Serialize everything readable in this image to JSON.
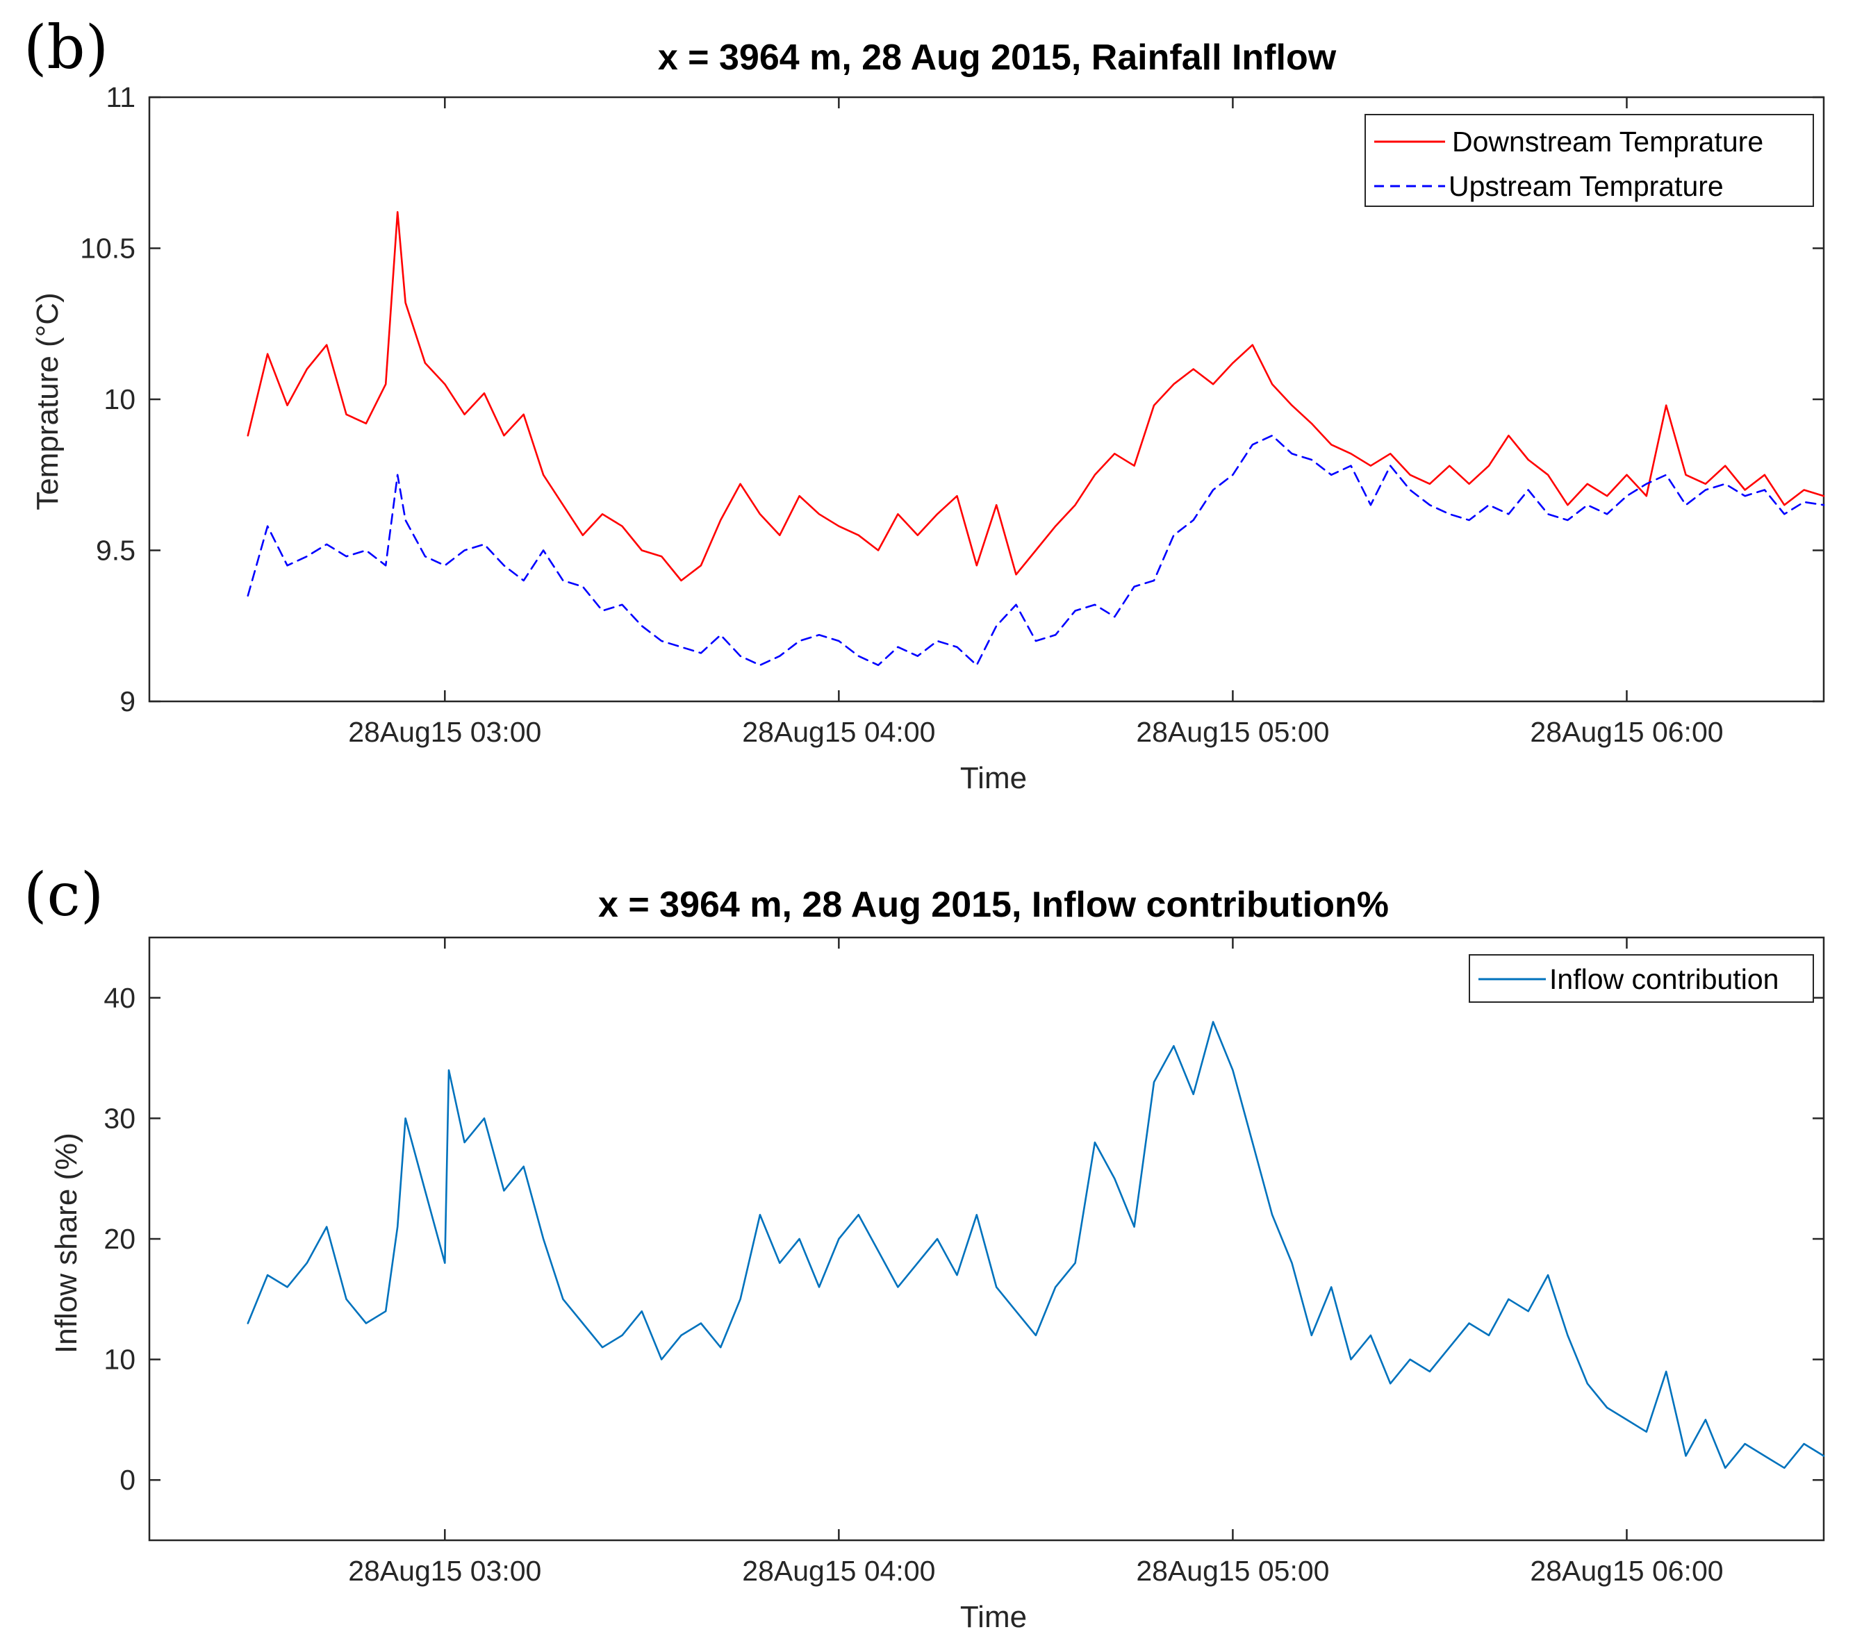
{
  "panel_b_label": "(b)",
  "panel_c_label": "(c)",
  "chart_data": [
    {
      "type": "line",
      "title": "x = 3964 m, 28 Aug 2015, Rainfall Inflow",
      "xlabel": "Time",
      "ylabel": "Temprature (°C)",
      "xlim_hours": [
        2.25,
        6.5
      ],
      "ylim": [
        9,
        11
      ],
      "yticks": [
        9,
        9.5,
        10,
        10.5,
        11
      ],
      "ytick_labels": [
        "9",
        "9.5",
        "10",
        "10.5",
        "11"
      ],
      "xticks_hours": [
        3,
        4,
        5,
        6
      ],
      "xtick_labels": [
        "28Aug15 03:00",
        "28Aug15 04:00",
        "28Aug15 05:00",
        "28Aug15 06:00"
      ],
      "legend_position": "top-right",
      "x_hours": [
        2.5,
        2.55,
        2.6,
        2.65,
        2.7,
        2.75,
        2.8,
        2.85,
        2.88,
        2.9,
        2.95,
        3.0,
        3.05,
        3.1,
        3.15,
        3.2,
        3.25,
        3.3,
        3.35,
        3.4,
        3.45,
        3.5,
        3.55,
        3.6,
        3.65,
        3.7,
        3.75,
        3.8,
        3.85,
        3.9,
        3.95,
        4.0,
        4.05,
        4.1,
        4.15,
        4.2,
        4.25,
        4.3,
        4.35,
        4.4,
        4.45,
        4.5,
        4.55,
        4.6,
        4.65,
        4.7,
        4.75,
        4.8,
        4.85,
        4.9,
        4.95,
        5.0,
        5.05,
        5.1,
        5.15,
        5.2,
        5.25,
        5.3,
        5.35,
        5.4,
        5.45,
        5.5,
        5.55,
        5.6,
        5.65,
        5.7,
        5.75,
        5.8,
        5.85,
        5.9,
        5.95,
        6.0,
        6.05,
        6.1,
        6.15,
        6.2,
        6.25,
        6.3,
        6.35,
        6.4,
        6.45,
        6.5
      ],
      "series": [
        {
          "name": "Downstream Temprature",
          "color": "#ff0000",
          "dash": "solid",
          "values": [
            9.88,
            10.15,
            9.98,
            10.1,
            10.18,
            9.95,
            9.92,
            10.05,
            10.62,
            10.32,
            10.12,
            10.05,
            9.95,
            10.02,
            9.88,
            9.95,
            9.75,
            9.65,
            9.55,
            9.62,
            9.58,
            9.5,
            9.48,
            9.4,
            9.45,
            9.6,
            9.72,
            9.62,
            9.55,
            9.68,
            9.62,
            9.58,
            9.55,
            9.5,
            9.62,
            9.55,
            9.62,
            9.68,
            9.45,
            9.65,
            9.42,
            9.5,
            9.58,
            9.65,
            9.75,
            9.82,
            9.78,
            9.98,
            10.05,
            10.1,
            10.05,
            10.12,
            10.18,
            10.05,
            9.98,
            9.92,
            9.85,
            9.82,
            9.78,
            9.82,
            9.75,
            9.72,
            9.78,
            9.72,
            9.78,
            9.88,
            9.8,
            9.75,
            9.65,
            9.72,
            9.68,
            9.75,
            9.68,
            9.98,
            9.75,
            9.72,
            9.78,
            9.7,
            9.75,
            9.65,
            9.7,
            9.68
          ]
        },
        {
          "name": "Upstream Temprature",
          "color": "#0000ff",
          "dash": "dashed",
          "values": [
            9.35,
            9.58,
            9.45,
            9.48,
            9.52,
            9.48,
            9.5,
            9.45,
            9.75,
            9.6,
            9.48,
            9.45,
            9.5,
            9.52,
            9.45,
            9.4,
            9.5,
            9.4,
            9.38,
            9.3,
            9.32,
            9.25,
            9.2,
            9.18,
            9.16,
            9.22,
            9.15,
            9.12,
            9.15,
            9.2,
            9.22,
            9.2,
            9.15,
            9.12,
            9.18,
            9.15,
            9.2,
            9.18,
            9.12,
            9.25,
            9.32,
            9.2,
            9.22,
            9.3,
            9.32,
            9.28,
            9.38,
            9.4,
            9.55,
            9.6,
            9.7,
            9.75,
            9.85,
            9.88,
            9.82,
            9.8,
            9.75,
            9.78,
            9.65,
            9.78,
            9.7,
            9.65,
            9.62,
            9.6,
            9.65,
            9.62,
            9.7,
            9.62,
            9.6,
            9.65,
            9.62,
            9.68,
            9.72,
            9.75,
            9.65,
            9.7,
            9.72,
            9.68,
            9.7,
            9.62,
            9.66,
            9.65
          ]
        }
      ]
    },
    {
      "type": "line",
      "title": "x = 3964 m, 28 Aug 2015, Inflow contribution%",
      "xlabel": "Time",
      "ylabel": "Inflow share (%)",
      "xlim_hours": [
        2.25,
        6.5
      ],
      "ylim": [
        -5,
        45
      ],
      "yticks": [
        0,
        10,
        20,
        30,
        40
      ],
      "ytick_labels": [
        "0",
        "10",
        "20",
        "30",
        "40"
      ],
      "xticks_hours": [
        3,
        4,
        5,
        6
      ],
      "xtick_labels": [
        "28Aug15 03:00",
        "28Aug15 04:00",
        "28Aug15 05:00",
        "28Aug15 06:00"
      ],
      "legend_position": "top-right",
      "x_hours": [
        2.5,
        2.55,
        2.6,
        2.65,
        2.7,
        2.75,
        2.8,
        2.85,
        2.88,
        2.9,
        2.95,
        3.0,
        3.01,
        3.05,
        3.1,
        3.15,
        3.2,
        3.25,
        3.3,
        3.35,
        3.4,
        3.45,
        3.5,
        3.55,
        3.6,
        3.65,
        3.7,
        3.75,
        3.8,
        3.85,
        3.9,
        3.95,
        4.0,
        4.05,
        4.1,
        4.15,
        4.2,
        4.25,
        4.3,
        4.35,
        4.4,
        4.45,
        4.5,
        4.55,
        4.6,
        4.65,
        4.7,
        4.75,
        4.8,
        4.85,
        4.9,
        4.95,
        5.0,
        5.05,
        5.1,
        5.15,
        5.2,
        5.25,
        5.3,
        5.35,
        5.4,
        5.45,
        5.5,
        5.55,
        5.6,
        5.65,
        5.7,
        5.75,
        5.8,
        5.85,
        5.9,
        5.95,
        6.0,
        6.05,
        6.1,
        6.15,
        6.2,
        6.25,
        6.3,
        6.35,
        6.4,
        6.45,
        6.5
      ],
      "series": [
        {
          "name": "Inflow contribution",
          "color": "#0072bd",
          "dash": "solid",
          "values": [
            13,
            17,
            16,
            18,
            21,
            15,
            13,
            14,
            21,
            30,
            24,
            18,
            34,
            28,
            30,
            24,
            26,
            20,
            15,
            13,
            11,
            12,
            14,
            10,
            12,
            13,
            11,
            15,
            22,
            18,
            20,
            16,
            20,
            22,
            19,
            16,
            18,
            20,
            17,
            22,
            16,
            14,
            12,
            16,
            18,
            28,
            25,
            21,
            33,
            36,
            32,
            38,
            34,
            28,
            22,
            18,
            12,
            16,
            10,
            12,
            8,
            10,
            9,
            11,
            13,
            12,
            15,
            14,
            17,
            12,
            8,
            6,
            5,
            4,
            9,
            2,
            5,
            1,
            3,
            2,
            1,
            3,
            2
          ]
        }
      ]
    }
  ]
}
